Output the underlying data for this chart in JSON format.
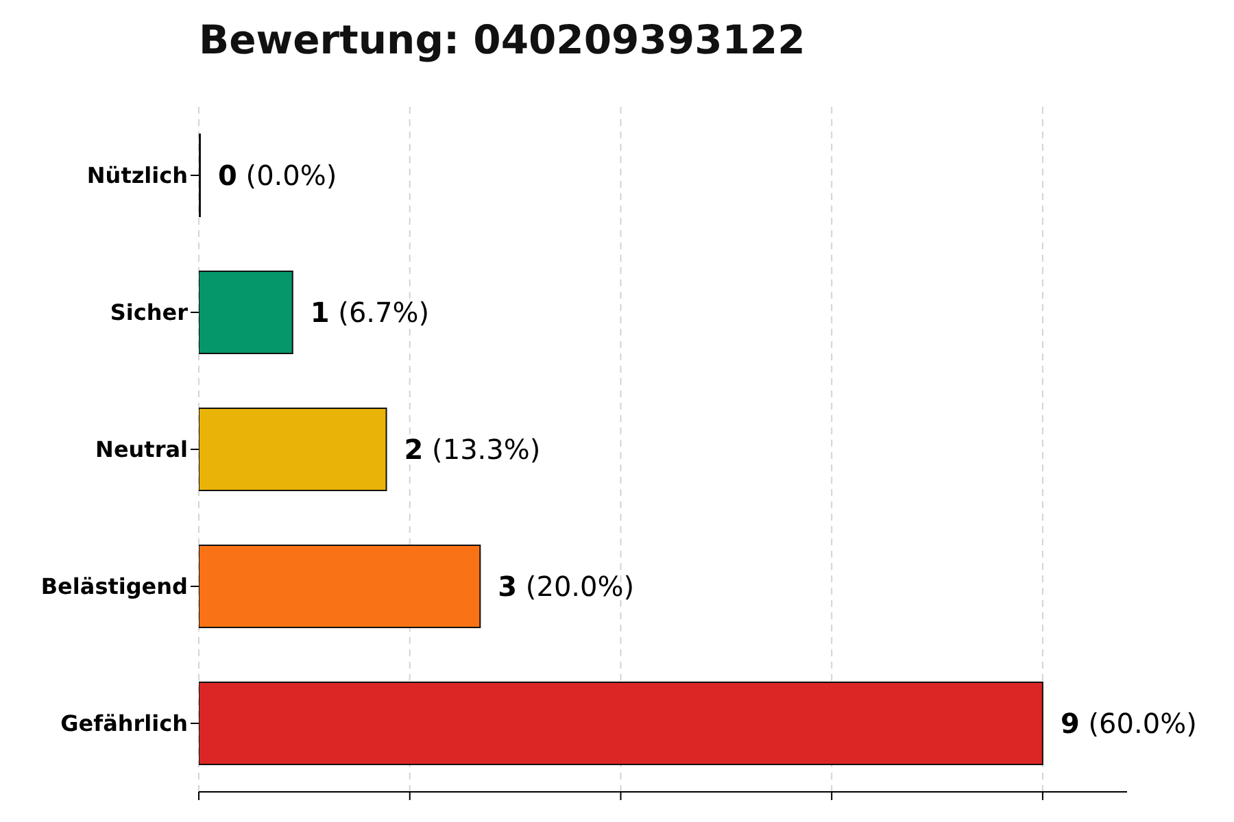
{
  "chart_data": {
    "type": "bar",
    "orientation": "horizontal",
    "title": "Bewertung: 040209393122",
    "categories": [
      "Nützlich",
      "Sicher",
      "Neutral",
      "Belästigend",
      "Gefährlich"
    ],
    "values": [
      0,
      1,
      2,
      3,
      9
    ],
    "colors": [
      "#15803d",
      "#059669",
      "#eab308",
      "#f97316",
      "#dc2626"
    ],
    "value_labels": [
      "0 (0.0%)",
      "1 (6.7%)",
      "2 (13.3%)",
      "3 (20.0%)",
      "9 (60.0%)"
    ],
    "xlim": [
      0,
      9.9
    ],
    "xticks": [
      {
        "value": 0,
        "label": null
      },
      {
        "value": 2.25,
        "label": null
      },
      {
        "value": 4.5,
        "label": null
      },
      {
        "value": 6.75,
        "label": null
      },
      {
        "value": 9,
        "label": null
      }
    ],
    "grid": "x",
    "tick_labels": "y"
  }
}
